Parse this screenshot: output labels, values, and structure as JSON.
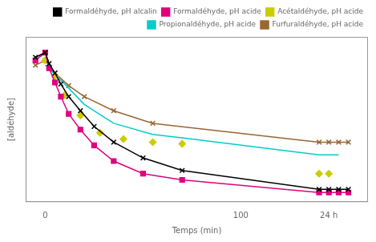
{
  "chart_data": {
    "type": "line",
    "xlabel": "Temps (min)",
    "ylabel": "[aldéhyde]",
    "xlim": [
      -10,
      165
    ],
    "xticks": [
      0,
      100,
      {
        "value": 145,
        "label": "24 h"
      }
    ],
    "ylim": [
      0,
      1.05
    ],
    "tick_labels": "x",
    "grid": false,
    "legend": "upper right",
    "series": [
      {
        "name": "Formaldéhyde, pH alcalin",
        "color": "#000000",
        "marker": "x",
        "line_style": "solid",
        "x": [
          -5,
          0,
          2,
          5,
          8,
          12,
          18,
          25,
          35,
          50,
          70,
          140,
          145,
          150,
          155
        ],
        "values": [
          0.92,
          0.95,
          0.88,
          0.82,
          0.75,
          0.67,
          0.58,
          0.48,
          0.38,
          0.28,
          0.2,
          0.08,
          0.08,
          0.08,
          0.08
        ]
      },
      {
        "name": "Formaldéhyde, pH acide",
        "color": "#e0007f",
        "marker": "square",
        "line_style": "solid",
        "x": [
          -5,
          0,
          2,
          5,
          8,
          12,
          18,
          25,
          35,
          50,
          70,
          140,
          145,
          150,
          155
        ],
        "values": [
          0.9,
          0.95,
          0.85,
          0.76,
          0.67,
          0.56,
          0.46,
          0.36,
          0.26,
          0.18,
          0.14,
          0.06,
          0.06,
          0.06,
          0.06
        ]
      },
      {
        "name": "Acétaldéhyde, pH acide",
        "color": "#cccc00",
        "marker": "diamond",
        "line_style": "none",
        "x": [
          0,
          5,
          10,
          18,
          28,
          40,
          55,
          70,
          140,
          145
        ],
        "values": [
          0.9,
          0.8,
          0.68,
          0.55,
          0.44,
          0.4,
          0.38,
          0.37,
          0.18,
          0.18
        ]
      },
      {
        "name": "Propionaldéhyde, pH acide",
        "color": "#00cccc",
        "marker": "none",
        "line_style": "solid",
        "x": [
          0,
          10,
          20,
          35,
          55,
          75,
          140,
          145,
          150
        ],
        "values": [
          0.87,
          0.75,
          0.62,
          0.5,
          0.43,
          0.4,
          0.3,
          0.3,
          0.3
        ]
      },
      {
        "name": "Furfuraldéhyde, pH acide",
        "color": "#996633",
        "marker": "x",
        "line_style": "solid",
        "x": [
          -5,
          0,
          5,
          12,
          20,
          35,
          55,
          140,
          145,
          150,
          155
        ],
        "values": [
          0.87,
          0.9,
          0.82,
          0.74,
          0.67,
          0.58,
          0.5,
          0.38,
          0.38,
          0.38,
          0.38
        ]
      }
    ]
  }
}
